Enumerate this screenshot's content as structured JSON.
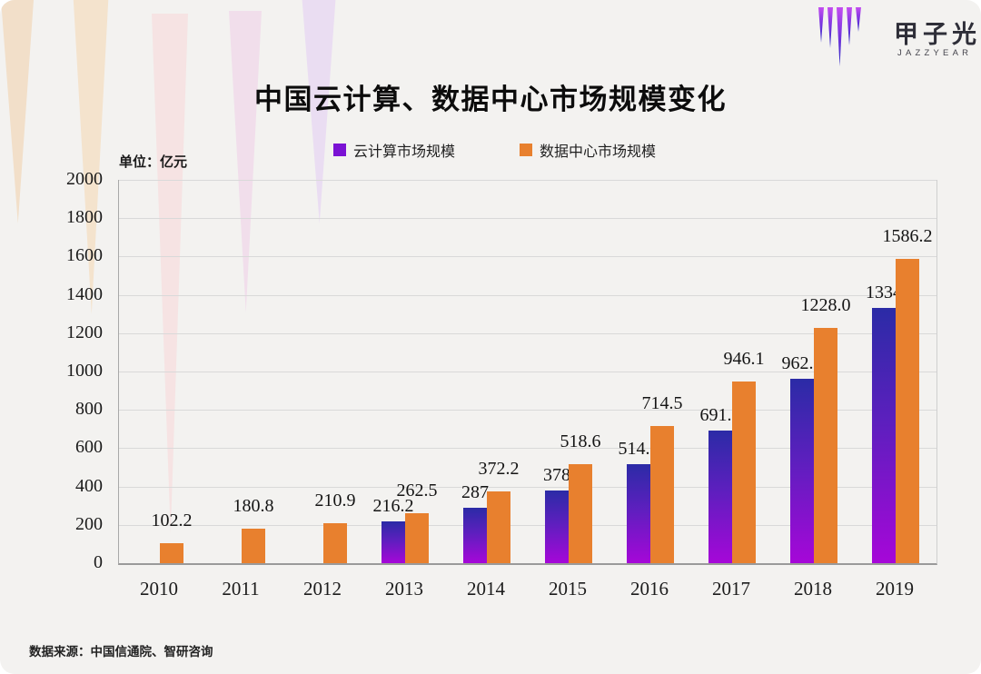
{
  "header": {
    "title": "中国云计算、数据中心市场规模变化",
    "logo_cn": "甲子光年",
    "logo_en": "JAZZYEAR"
  },
  "unit_label": "单位：亿元",
  "footer": {
    "source": "数据来源：中国信通院、智研咨询"
  },
  "colors": {
    "cloud_gradient_top": "#2B2BA6",
    "cloud_gradient_bottom": "#A607D8",
    "cloud_legend_swatch": "#7B12D4",
    "datacenter_orange": "#E8802E",
    "page_background": "#F3F2F0"
  },
  "chart_data": {
    "type": "bar",
    "title": "中国云计算、数据中心市场规模变化",
    "unit": "亿元",
    "categories": [
      "2010",
      "2011",
      "2012",
      "2013",
      "2014",
      "2015",
      "2016",
      "2017",
      "2018",
      "2019"
    ],
    "series": [
      {
        "name": "云计算市场规模",
        "color": "#7B12D4",
        "values": [
          null,
          null,
          null,
          216.2,
          287,
          378,
          514.9,
          691.6,
          962.8,
          1334
        ],
        "labels": [
          "",
          "",
          "",
          "216.2",
          "287",
          "378",
          "514.9",
          "691.6",
          "962.8",
          "1334"
        ]
      },
      {
        "name": "数据中心市场规模",
        "color": "#E8802E",
        "values": [
          102.2,
          180.8,
          210.9,
          262.5,
          372.2,
          518.6,
          714.5,
          946.1,
          1228.0,
          1586.2
        ],
        "labels": [
          "102.2",
          "180.8",
          "210.9",
          "262.5",
          "372.2",
          "518.6",
          "714.5",
          "946.1",
          "1228.0",
          "1586.2"
        ]
      }
    ],
    "ylim": [
      0,
      2000
    ],
    "ytick_step": 200,
    "grid": true,
    "legend_position": "top",
    "xlabel": "",
    "ylabel": "亿元"
  }
}
